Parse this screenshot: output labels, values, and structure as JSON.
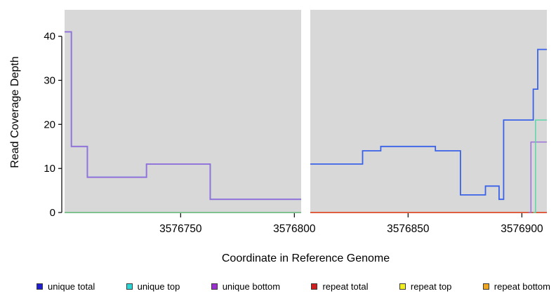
{
  "chart_data": {
    "type": "line",
    "title": "",
    "xlabel": "Coordinate in Reference Genome",
    "ylabel": "Read Coverage Depth",
    "x_axis": {
      "min": 3576699,
      "max": 3576911,
      "ticks": [
        {
          "value": 3576750,
          "label": "3576750"
        },
        {
          "value": 3576800,
          "label": "3576800"
        },
        {
          "value": 3576850,
          "label": "3576850"
        },
        {
          "value": 3576900,
          "label": "3576900"
        }
      ]
    },
    "y_axis": {
      "min": 0,
      "max": 46,
      "ticks": [
        {
          "value": 0,
          "label": "0"
        },
        {
          "value": 10,
          "label": "10"
        },
        {
          "value": 20,
          "label": "20"
        },
        {
          "value": 30,
          "label": "30"
        },
        {
          "value": 40,
          "label": "40"
        }
      ]
    },
    "panel": {
      "bg": "#d8d8d8",
      "gap": [
        3576803,
        3576807
      ]
    },
    "series": [
      {
        "name": "repeat top",
        "color": "#f2ef2a",
        "width": 1.4,
        "segments": [
          [
            [
              3576699,
              0
            ],
            [
              3576803,
              0
            ]
          ],
          [
            [
              3576807,
              0
            ],
            [
              3576911,
              0
            ]
          ]
        ]
      },
      {
        "name": "repeat bottom",
        "color": "#f0a51f",
        "width": 1.4,
        "segments": [
          [
            [
              3576699,
              0
            ],
            [
              3576803,
              0
            ]
          ],
          [
            [
              3576807,
              0
            ],
            [
              3576911,
              0
            ]
          ]
        ]
      },
      {
        "name": "repeat total",
        "color": "#d93a3a",
        "width": 1.4,
        "segments": [
          [
            [
              3576699,
              0
            ],
            [
              3576803,
              0
            ]
          ],
          [
            [
              3576807,
              0
            ],
            [
              3576911,
              0
            ]
          ]
        ]
      },
      {
        "name": "unique total",
        "color": "#3a62e8",
        "width": 1.8,
        "segments": [
          [
            [
              3576699,
              41
            ],
            [
              3576702,
              15
            ],
            [
              3576709,
              8
            ],
            [
              3576735,
              11
            ],
            [
              3576763,
              3
            ],
            [
              3576803,
              3
            ]
          ],
          [
            [
              3576807,
              11
            ],
            [
              3576830,
              14
            ],
            [
              3576838,
              15
            ],
            [
              3576862,
              14
            ],
            [
              3576873,
              4
            ],
            [
              3576884,
              6
            ],
            [
              3576890,
              3
            ],
            [
              3576892,
              21
            ],
            [
              3576905,
              28
            ],
            [
              3576907,
              37
            ],
            [
              3576911,
              37
            ]
          ]
        ]
      },
      {
        "name": "unique bottom",
        "color": "#9a6fd8",
        "width": 1.5,
        "segments": [
          [
            [
              3576699,
              41
            ],
            [
              3576702,
              15
            ],
            [
              3576709,
              8
            ],
            [
              3576735,
              11
            ],
            [
              3576763,
              3
            ],
            [
              3576803,
              3
            ]
          ],
          [
            [
              3576903,
              0
            ],
            [
              3576904,
              16
            ],
            [
              3576911,
              16
            ]
          ]
        ]
      },
      {
        "name": "unique top",
        "color": "#5fd6a8",
        "width": 1.5,
        "segments": [
          [
            [
              3576699,
              0
            ],
            [
              3576803,
              0
            ]
          ],
          [
            [
              3576905,
              0
            ],
            [
              3576906,
              21
            ],
            [
              3576911,
              21
            ]
          ]
        ]
      }
    ],
    "legend": [
      {
        "label": "unique total",
        "color": "#1f1fd1"
      },
      {
        "label": "unique top",
        "color": "#2bd6d6"
      },
      {
        "label": "unique bottom",
        "color": "#9b30d0"
      },
      {
        "label": "repeat total",
        "color": "#d11f1f"
      },
      {
        "label": "repeat top",
        "color": "#f2ef1f"
      },
      {
        "label": "repeat bottom",
        "color": "#f0a51f"
      }
    ]
  }
}
